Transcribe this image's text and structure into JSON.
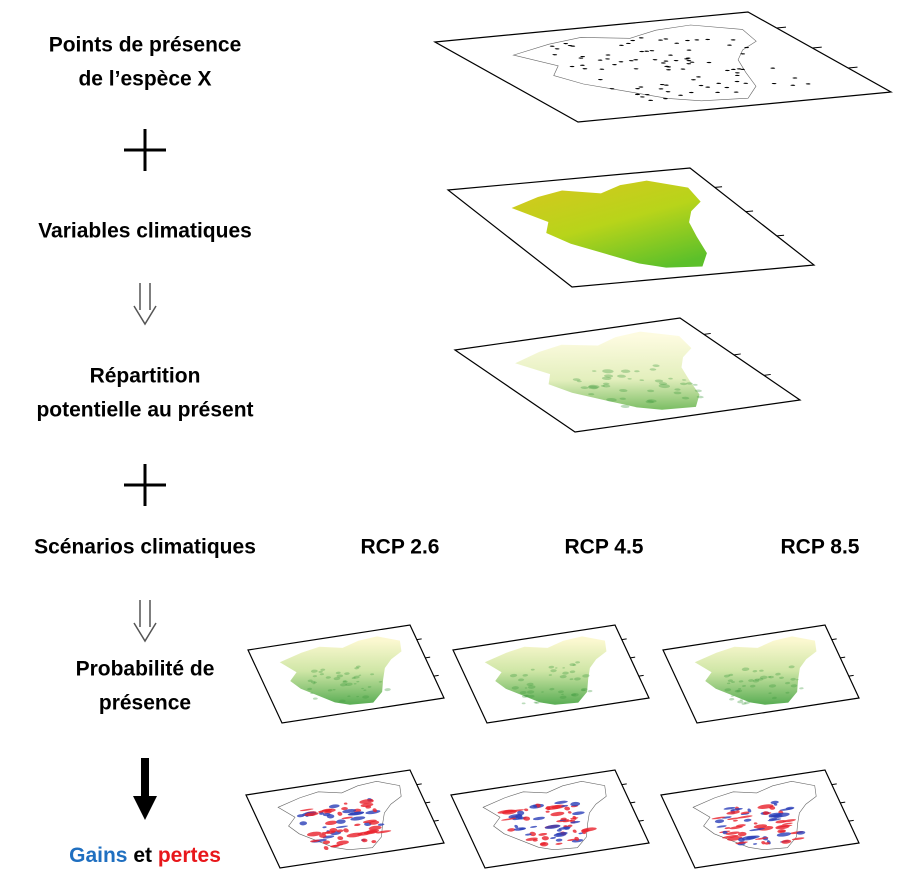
{
  "steps": [
    {
      "lines": [
        "Points de présence",
        "de l’espèce X"
      ]
    },
    {
      "lines": [
        "Variables climatiques"
      ]
    },
    {
      "lines": [
        "Répartition",
        "potentielle au présent"
      ]
    },
    {
      "lines": [
        "Scénarios climatiques"
      ]
    },
    {
      "lines": [
        "Probabilité de",
        "présence"
      ]
    }
  ],
  "scenarios": [
    "RCP 2.6",
    "RCP 4.5",
    "RCP 8.5"
  ],
  "result": {
    "gains": "Gains",
    "and": "et",
    "losses": "pertes"
  }
}
